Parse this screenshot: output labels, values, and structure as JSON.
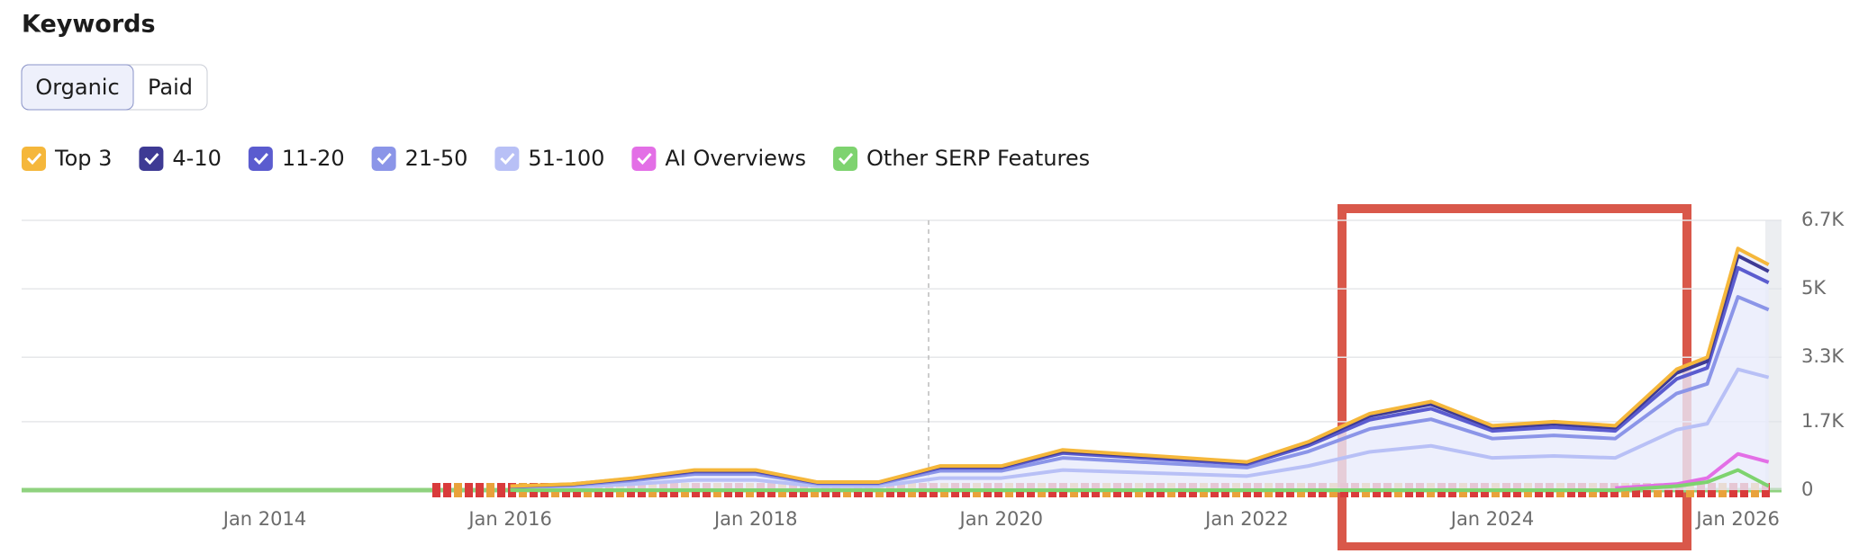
{
  "header": {
    "title": "Keywords",
    "tabs": [
      "Organic",
      "Paid"
    ]
  },
  "chart_data": {
    "type": "line",
    "x": [
      "Jan 2016",
      "Jul 2016",
      "Jan 2017",
      "Jul 2017",
      "Jan 2018",
      "Jul 2018",
      "Jan 2019",
      "Jul 2019",
      "Jan 2020",
      "Jul 2020",
      "Jan 2021",
      "Jul 2021",
      "Jan 2022",
      "Jul 2022",
      "Jan 2023",
      "Jul 2023",
      "Jan 2024",
      "Jul 2024",
      "Jan 2025",
      "Jul 2025",
      "Oct 2025",
      "Jan 2026",
      "Apr 2026"
    ],
    "series": [
      {
        "name": "Top 3",
        "color": "#f5b73b",
        "stacked": true,
        "values": [
          3,
          5,
          9,
          15,
          15,
          6,
          6,
          18,
          18,
          30,
          27,
          24,
          21,
          36,
          57,
          66,
          48,
          51,
          48,
          90,
          99,
          180,
          168
        ]
      },
      {
        "name": "4-10",
        "color": "#3e3a94",
        "stacked": true,
        "values": [
          5,
          8,
          15,
          25,
          25,
          10,
          10,
          30,
          30,
          50,
          45,
          40,
          35,
          60,
          95,
          110,
          80,
          85,
          80,
          150,
          165,
          300,
          280
        ]
      },
      {
        "name": "11-20",
        "color": "#5b5ccf",
        "stacked": true,
        "values": [
          12,
          18,
          36,
          60,
          60,
          24,
          24,
          72,
          72,
          120,
          108,
          96,
          84,
          144,
          228,
          264,
          192,
          204,
          192,
          360,
          396,
          720,
          672
        ]
      },
      {
        "name": "21-50",
        "color": "#8b95e8",
        "stacked": true,
        "values": [
          30,
          45,
          90,
          150,
          150,
          60,
          60,
          180,
          180,
          300,
          270,
          240,
          210,
          360,
          570,
          660,
          480,
          510,
          480,
          900,
          990,
          1800,
          1680
        ]
      },
      {
        "name": "51-100",
        "color": "#b8c0f6",
        "stacked": true,
        "values": [
          50,
          75,
          150,
          250,
          250,
          100,
          100,
          300,
          300,
          500,
          450,
          400,
          350,
          600,
          950,
          1100,
          800,
          850,
          800,
          1500,
          1650,
          3000,
          2800
        ]
      },
      {
        "name": "AI Overviews",
        "color": "#e36fe6",
        "stacked": false,
        "values": [
          null,
          null,
          null,
          null,
          null,
          null,
          null,
          null,
          null,
          null,
          null,
          null,
          null,
          null,
          null,
          null,
          null,
          null,
          50,
          150,
          300,
          900,
          700
        ]
      },
      {
        "name": "Other SERP Features",
        "color": "#7ed36f",
        "stacked": false,
        "values": [
          0,
          0,
          0,
          0,
          0,
          0,
          0,
          0,
          0,
          0,
          0,
          0,
          0,
          0,
          0,
          0,
          0,
          0,
          0,
          100,
          200,
          500,
          100
        ]
      }
    ],
    "ylim": [
      0,
      6700
    ],
    "yticks": [
      0,
      {
        "value": 1700,
        "label": "1.7K"
      },
      {
        "value": 3300,
        "label": "3.3K"
      },
      {
        "value": 5000,
        "label": "5K"
      },
      {
        "value": 6700,
        "label": "6.7K"
      }
    ],
    "xticks": [
      "Jan 2014",
      "Jan 2016",
      "Jan 2018",
      "Jan 2020",
      "Jan 2022",
      "Jan 2024",
      "Jan 2026"
    ],
    "grid": true
  }
}
